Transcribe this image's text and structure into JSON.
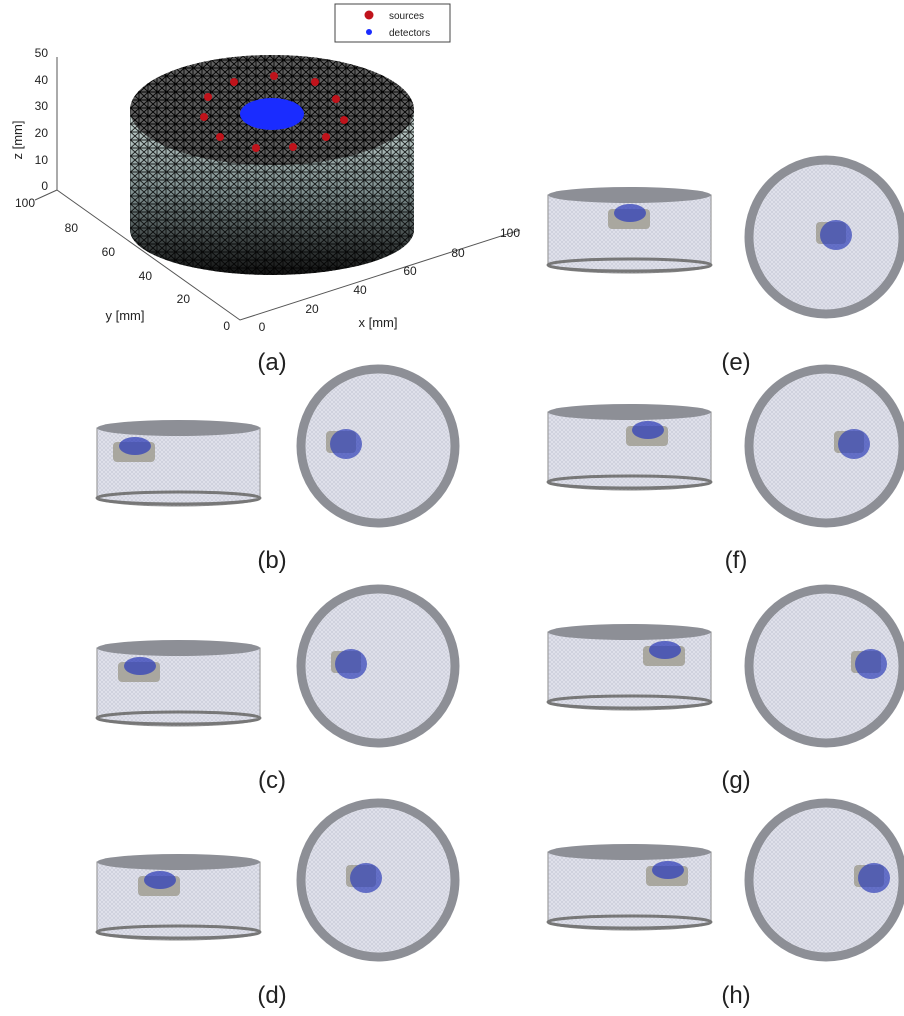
{
  "panel_a": {
    "legend": [
      "sources",
      "detectors"
    ],
    "z_label": "z [mm]",
    "y_label": "y [mm]",
    "x_label": "x [mm]",
    "z_ticks": [
      0,
      10,
      20,
      30,
      40,
      50
    ],
    "y_ticks": [
      0,
      20,
      40,
      60,
      80,
      100
    ],
    "x_ticks": [
      0,
      20,
      40,
      60,
      80,
      100
    ]
  },
  "panel_labels": [
    "(a)",
    "(b)",
    "(c)",
    "(d)",
    "(e)",
    "(f)",
    "(g)",
    "(h)"
  ]
}
